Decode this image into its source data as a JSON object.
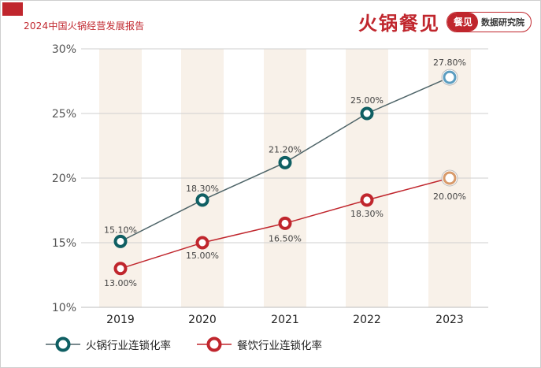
{
  "header": {
    "report_title": "2024中国火锅经营发展报告",
    "brand_name": "火锅餐见",
    "badge_logo": "餐见",
    "badge_text": "数据研究院"
  },
  "colors": {
    "accent": "#c0262d",
    "series_hotpot": "#0f5f63",
    "series_hotpot_line": "#4e6468",
    "series_hotpot_last": "#5b9dc0",
    "series_catering": "#c0262d",
    "series_catering_last": "#d89a6a",
    "band": "#f8f1e9",
    "grid": "#cfcfcf"
  },
  "chart_data": {
    "type": "line",
    "title": "",
    "categories": [
      "2019",
      "2020",
      "2021",
      "2022",
      "2023"
    ],
    "ylim": [
      10,
      30
    ],
    "yticks": [
      "10%",
      "15%",
      "20%",
      "25%",
      "30%"
    ],
    "yvalues": [
      10,
      15,
      20,
      25,
      30
    ],
    "grid": true,
    "legend_position": "bottom-left",
    "series": [
      {
        "name": "火锅行业连锁化率",
        "values": [
          15.1,
          18.3,
          21.2,
          25.0,
          27.8
        ],
        "labels": [
          "15.10%",
          "18.30%",
          "21.20%",
          "25.00%",
          "27.80%"
        ]
      },
      {
        "name": "餐饮行业连锁化率",
        "values": [
          13.0,
          15.0,
          16.5,
          18.3,
          20.0
        ],
        "labels": [
          "13.00%",
          "15.00%",
          "16.50%",
          "18.30%",
          "20.00%"
        ]
      }
    ]
  }
}
